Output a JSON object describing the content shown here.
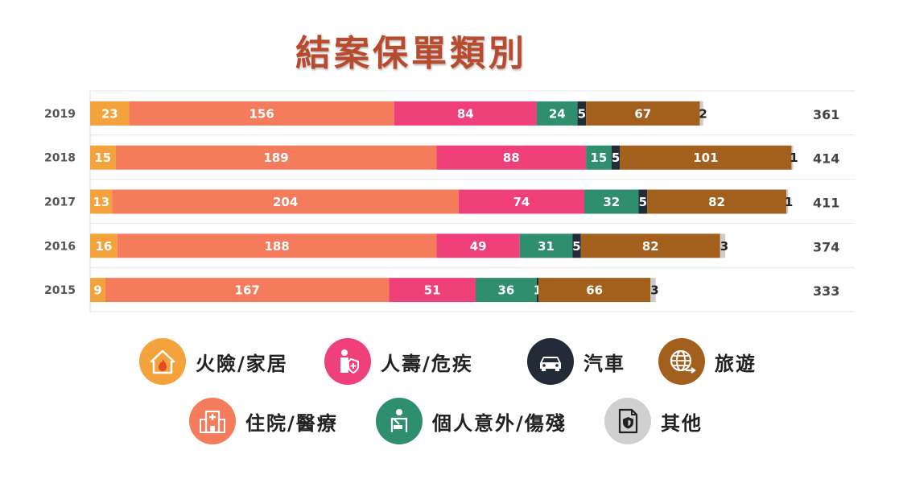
{
  "title": "結案保單類別",
  "chart_data": {
    "type": "bar",
    "orientation": "horizontal",
    "stacked": true,
    "categories": [
      "2019",
      "2018",
      "2017",
      "2016",
      "2015"
    ],
    "series": [
      {
        "name": "火險/家居",
        "color": "#f4a23c",
        "values": [
          23,
          15,
          13,
          16,
          9
        ]
      },
      {
        "name": "住院/醫療",
        "color": "#f47c5c",
        "values": [
          156,
          189,
          204,
          188,
          167
        ]
      },
      {
        "name": "人壽/危疾",
        "color": "#f0407a",
        "values": [
          84,
          88,
          74,
          49,
          51
        ]
      },
      {
        "name": "個人意外/傷殘",
        "color": "#2e8e6e",
        "values": [
          24,
          15,
          32,
          31,
          36
        ]
      },
      {
        "name": "汽車",
        "color": "#232a38",
        "values": [
          5,
          5,
          5,
          5,
          1
        ]
      },
      {
        "name": "旅遊",
        "color": "#a2601c",
        "values": [
          67,
          101,
          82,
          82,
          66
        ]
      },
      {
        "name": "其他",
        "color": "#cccccc",
        "values": [
          2,
          1,
          1,
          3,
          3
        ]
      }
    ],
    "totals": [
      "361",
      "414",
      "411",
      "374",
      "333"
    ],
    "xlim": [
      0,
      414
    ],
    "grid": true,
    "legend": "bottom"
  },
  "legend": {
    "items": [
      {
        "label": "火險/家居",
        "color": "#f4a23c",
        "icon": "house-fire-icon"
      },
      {
        "label": "人壽/危疾",
        "color": "#f0407a",
        "icon": "person-shield-icon"
      },
      {
        "label": "汽車",
        "color": "#232a38",
        "icon": "car-icon"
      },
      {
        "label": "旅遊",
        "color": "#a2601c",
        "icon": "globe-plane-icon"
      },
      {
        "label": "住院/醫療",
        "color": "#f47c5c",
        "icon": "hospital-icon"
      },
      {
        "label": "個人意外/傷殘",
        "color": "#2e8e6e",
        "icon": "injured-person-icon"
      },
      {
        "label": "其他",
        "color": "#cccccc",
        "icon": "document-shield-icon"
      }
    ]
  }
}
